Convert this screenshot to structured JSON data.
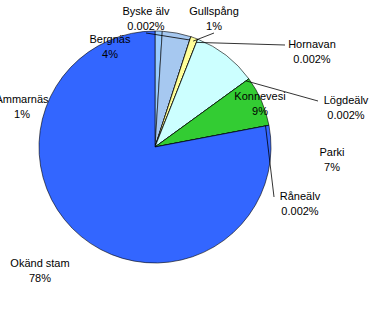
{
  "chart_data": {
    "type": "pie",
    "categories": [
      "Ammarnäs",
      "Bergnäs",
      "Byske älv",
      "Gullspång",
      "Hornavan",
      "Konnevesi",
      "Lögdeälv",
      "Parki",
      "Råneälv",
      "Okänd stam"
    ],
    "values": [
      1,
      4,
      0.002,
      1,
      0.002,
      9,
      0.002,
      7,
      0.002,
      78
    ],
    "value_labels": [
      "1%",
      "4%",
      "0.002%",
      "1%",
      "0.002%",
      "9%",
      "0.002%",
      "7%",
      "0.002%",
      "78%"
    ],
    "colors": [
      "#99ccff",
      "#a6c8f0",
      "#993366",
      "#ffff99",
      "#ffffcc",
      "#ccffff",
      "#660066",
      "#33cc33",
      "#ff8080",
      "#3366ff"
    ],
    "data_labels": true
  }
}
